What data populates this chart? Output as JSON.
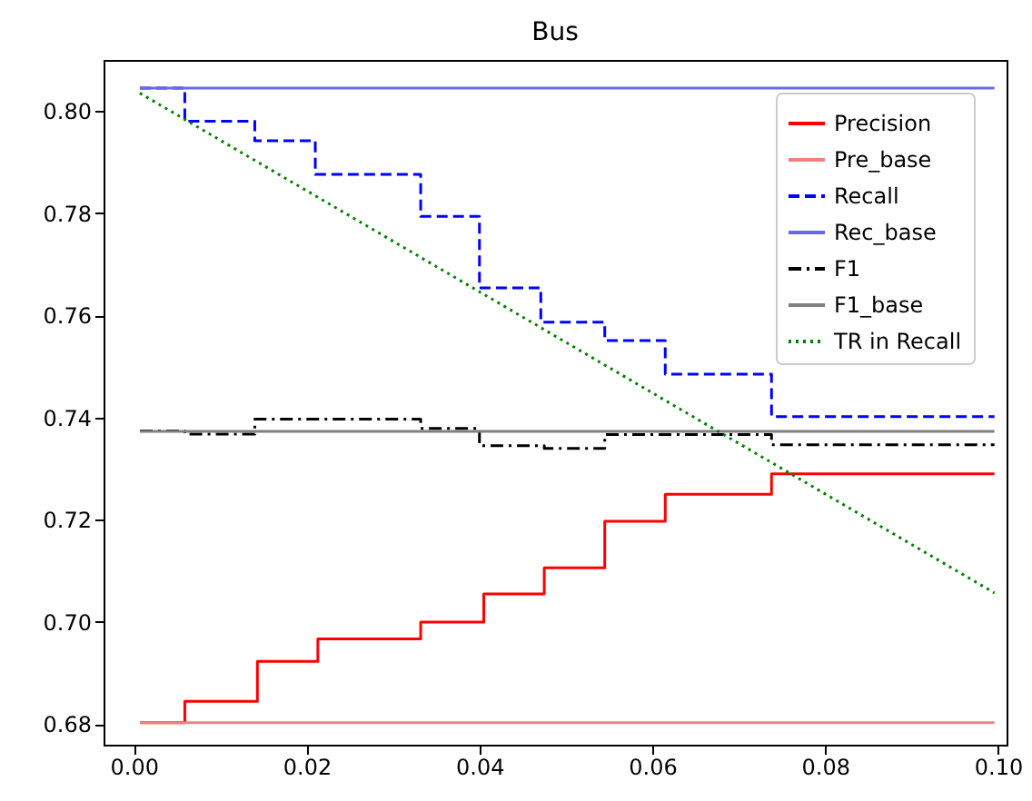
{
  "chart_data": {
    "type": "line",
    "title": "Bus",
    "xlim": [
      -0.0035,
      0.101
    ],
    "xticks": [
      {
        "value": 0,
        "label": "0.00"
      },
      0.02,
      0.04,
      0.06,
      0.08,
      {
        "value": 0.1,
        "label": "0.10"
      }
    ],
    "ylim": [
      0.676,
      0.81
    ],
    "yticks": [
      0.68,
      {
        "value": 0.7,
        "label": "0.70"
      },
      0.72,
      0.74,
      0.76,
      0.78,
      {
        "value": 0.8,
        "label": "0.80"
      }
    ],
    "grid": false,
    "legend": "top right",
    "series": [
      {
        "name": "Precision",
        "type": "step",
        "color": "#ff0000",
        "line_style": "solid",
        "x": [
          0.0007,
          0.0059,
          0.0143,
          0.0213,
          0.0332,
          0.0405,
          0.0475,
          0.0545,
          0.0615,
          0.0738,
          0.0996
        ],
        "values": [
          0.6803,
          0.6845,
          0.6923,
          0.6967,
          0.7,
          0.7055,
          0.7106,
          0.7197,
          0.725,
          0.729,
          0.729
        ]
      },
      {
        "name": "Pre_base",
        "type": "line",
        "color": "#f08080",
        "line_style": "solid",
        "x": [
          0.0007,
          0.0996
        ],
        "values": [
          0.6803,
          0.6803
        ]
      },
      {
        "name": "Recall",
        "type": "step",
        "color": "#0000ff",
        "line_style": "dashed",
        "x": [
          0.0007,
          0.0059,
          0.014,
          0.021,
          0.0332,
          0.04,
          0.0471,
          0.0545,
          0.0615,
          0.0738,
          0.0996
        ],
        "values": [
          0.8045,
          0.798,
          0.7942,
          0.7876,
          0.7794,
          0.7654,
          0.7587,
          0.7551,
          0.7485,
          0.7402,
          0.7402
        ]
      },
      {
        "name": "Rec_base",
        "type": "line",
        "color": "#6a6ae8",
        "line_style": "solid",
        "x": [
          0.0007,
          0.0996
        ],
        "values": [
          0.8045,
          0.8045
        ]
      },
      {
        "name": "F1",
        "type": "step",
        "color": "#000000",
        "line_style": "dashdot",
        "x": [
          0.0007,
          0.0059,
          0.014,
          0.0332,
          0.04,
          0.0475,
          0.0545,
          0.0738,
          0.0996
        ],
        "values": [
          0.7374,
          0.7368,
          0.7397,
          0.7379,
          0.7345,
          0.734,
          0.7367,
          0.7347,
          0.7347
        ]
      },
      {
        "name": "F1_base",
        "type": "line",
        "color": "#808080",
        "line_style": "solid",
        "x": [
          0.0007,
          0.0996
        ],
        "values": [
          0.7373,
          0.7373
        ]
      },
      {
        "name": "TR in Recall",
        "type": "line",
        "color": "#008000",
        "line_style": "dotted",
        "x": [
          0.0007,
          0.0996
        ],
        "values": [
          0.8035,
          0.7057
        ]
      }
    ]
  }
}
